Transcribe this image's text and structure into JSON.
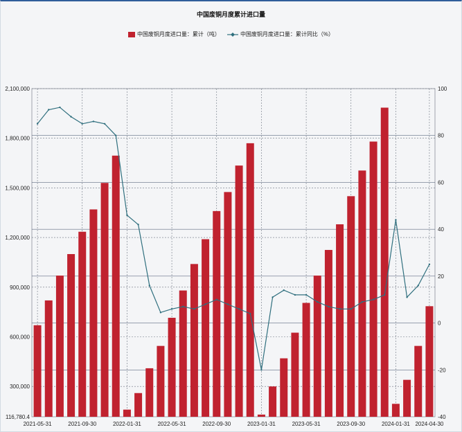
{
  "chart_data": {
    "type": "bar",
    "title": "中国废铜月度累计进口量",
    "colors": {
      "bar": "#c0222f",
      "line": "#2f6f7e"
    },
    "x_ticks": [
      "2021-05-31",
      "2021-09-30",
      "2022-01-31",
      "2022-05-31",
      "2022-09-30",
      "2023-01-31",
      "2023-05-31",
      "2023-09-30",
      "2024-01-31",
      "2024-04-30"
    ],
    "y_left_ticks": [
      "2,100,000",
      "1,800,000",
      "1,500,000",
      "1,200,000",
      "900,000",
      "600,000",
      "300,000",
      "116,780.4"
    ],
    "y_right_ticks": [
      "100",
      "80",
      "60",
      "40",
      "20",
      "0",
      "-20",
      "-40"
    ],
    "y_left_range": [
      116780.4,
      2100000
    ],
    "y_right_range": [
      -40,
      100
    ],
    "grid": true,
    "legend_position": "top",
    "categories": [
      "2021-05",
      "2021-06",
      "2021-07",
      "2021-08",
      "2021-09",
      "2021-10",
      "2021-11",
      "2021-12",
      "2022-01",
      "2022-02",
      "2022-03",
      "2022-04",
      "2022-05",
      "2022-06",
      "2022-07",
      "2022-08",
      "2022-09",
      "2022-10",
      "2022-11",
      "2022-12",
      "2023-01",
      "2023-02",
      "2023-03",
      "2023-04",
      "2023-05",
      "2023-06",
      "2023-07",
      "2023-08",
      "2023-09",
      "2023-10",
      "2023-11",
      "2023-12",
      "2024-01",
      "2024-02",
      "2024-03",
      "2024-04"
    ],
    "series": [
      {
        "name": "中国废铜月度进口量：累计（吨）",
        "axis": "left",
        "type": "bar",
        "values": [
          670000,
          820000,
          970000,
          1100000,
          1235000,
          1370000,
          1530000,
          1695000,
          160000,
          260000,
          410000,
          545000,
          715000,
          880000,
          1040000,
          1190000,
          1360000,
          1475000,
          1635000,
          1770000,
          130000,
          300000,
          470000,
          625000,
          805000,
          970000,
          1125000,
          1280000,
          1450000,
          1605000,
          1780000,
          1985000,
          195000,
          340000,
          545000,
          785000
        ]
      },
      {
        "name": "中国废铜月度进口量：累计同比（%）",
        "axis": "right",
        "type": "line",
        "values": [
          85,
          91,
          92,
          88,
          85,
          86,
          85,
          80,
          46,
          42,
          16,
          4.5,
          6,
          7,
          6,
          8,
          10,
          8,
          6,
          4,
          -20,
          11,
          14,
          12,
          12,
          9,
          7,
          6,
          6,
          9,
          10,
          12,
          44,
          11,
          16,
          25
        ]
      }
    ]
  }
}
